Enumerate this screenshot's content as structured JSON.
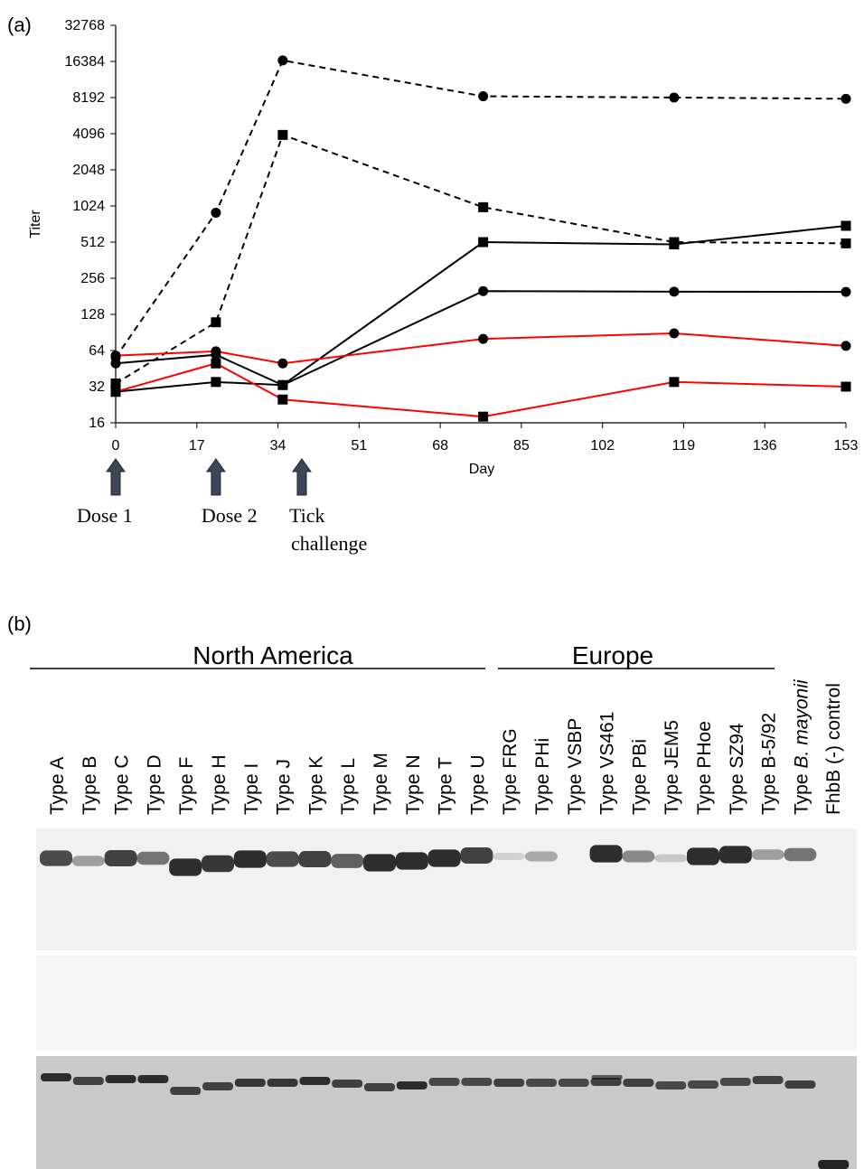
{
  "panel_labels": [
    "(a)",
    "(b)"
  ],
  "chart_data": {
    "type": "line",
    "x": [
      0,
      21,
      35,
      77,
      117,
      153
    ],
    "series": [
      {
        "color": "#000000",
        "dashed": true,
        "marker": "circle",
        "values": [
          56,
          900,
          16700,
          8400,
          8200,
          8000
        ]
      },
      {
        "color": "#000000",
        "dashed": true,
        "marker": "square",
        "values": [
          34,
          110,
          4000,
          1000,
          512,
          500
        ]
      },
      {
        "color": "#000000",
        "dashed": false,
        "marker": "square",
        "values": [
          29,
          35,
          33,
          512,
          490,
          700
        ]
      },
      {
        "color": "#000000",
        "dashed": false,
        "marker": "circle",
        "values": [
          50,
          59,
          33,
          200,
          198,
          197
        ]
      },
      {
        "color": "#ff0000",
        "dashed": false,
        "marker": "circle",
        "values": [
          58,
          63,
          50,
          80,
          89,
          70
        ]
      },
      {
        "color": "#ff0000",
        "dashed": false,
        "marker": "square",
        "values": [
          29,
          50,
          25,
          18,
          35,
          32
        ]
      }
    ],
    "xlabel": "Day",
    "ylabel": "Titer",
    "xlim": [
      0,
      153
    ],
    "xticks": [
      0,
      17,
      34,
      51,
      68,
      85,
      102,
      119,
      136,
      153
    ],
    "ylim": [
      16,
      32768
    ],
    "yticks": [
      16,
      32,
      64,
      128,
      256,
      512,
      1024,
      2048,
      4096,
      8192,
      16384,
      32768
    ],
    "yscale": "log",
    "annotations": [
      {
        "x": 0,
        "lines": [
          "Dose 1"
        ]
      },
      {
        "x": 21,
        "lines": [
          "Dose 2"
        ]
      },
      {
        "x": 39,
        "lines": [
          "Tick",
          "challenge"
        ]
      }
    ]
  },
  "blot": {
    "groups": [
      "North America",
      "Europe"
    ],
    "lanes": [
      {
        "label": "Type A"
      },
      {
        "label": "Type B"
      },
      {
        "label": "Type C"
      },
      {
        "label": "Type D"
      },
      {
        "label": "Type F"
      },
      {
        "label": "Type H"
      },
      {
        "label": "Type I"
      },
      {
        "label": "Type J"
      },
      {
        "label": "Type K"
      },
      {
        "label": "Type L"
      },
      {
        "label": "Type M"
      },
      {
        "label": "Type N"
      },
      {
        "label": "Type T"
      },
      {
        "label": "Type U"
      },
      {
        "label": "Type FRG"
      },
      {
        "label": "Type PHi"
      },
      {
        "label": "Type VSBP"
      },
      {
        "label": "Type VS461"
      },
      {
        "label": "Type PBi"
      },
      {
        "label": "Type JEM5"
      },
      {
        "label": "Type PHoe"
      },
      {
        "label": "Type SZ94"
      },
      {
        "label": "Type B-5/92"
      },
      {
        "label": "Type",
        "italic": "B. mayonii"
      },
      {
        "label": "FhbB (-) control"
      }
    ]
  }
}
